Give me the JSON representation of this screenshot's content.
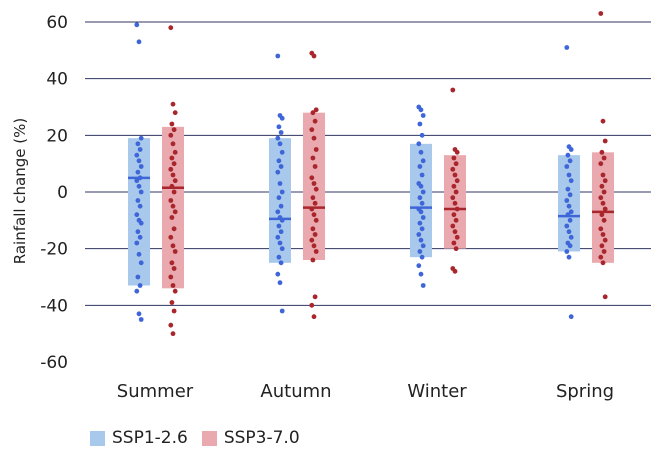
{
  "chart_data": {
    "type": "range-dot",
    "ylabel": "Rainfall change (%)",
    "ylim": [
      -60,
      65
    ],
    "yticks": [
      60,
      40,
      20,
      0,
      -20,
      -40,
      -60
    ],
    "categories": [
      "Summer",
      "Autumn",
      "Winter",
      "Spring"
    ],
    "colors": {
      "ssp126_fill": "#a9c9ec",
      "ssp126_dot": "#3f66d8",
      "ssp370_fill": "#e9a9ae",
      "ssp370_dot": "#a8262c",
      "gridline": "#2f3560"
    },
    "series": [
      {
        "name": "SSP1-2.6",
        "ranges": [
          [
            -33,
            19
          ],
          [
            -25,
            19
          ],
          [
            -23,
            17
          ],
          [
            -21,
            13
          ]
        ],
        "medians": [
          5,
          -9.5,
          -5.5,
          -8.5
        ],
        "points": [
          [
            59,
            53,
            19,
            17,
            15,
            13,
            11,
            9,
            7,
            5,
            4,
            2,
            0,
            -3,
            -5,
            -8,
            -10,
            -11,
            -14,
            -16,
            -18,
            -22,
            -25,
            -30,
            -33,
            -35,
            -43,
            -45
          ],
          [
            48,
            27,
            26,
            23,
            21,
            19,
            17,
            14,
            11,
            9,
            7,
            3,
            0,
            -2,
            -5,
            -7,
            -9,
            -10,
            -12,
            -14,
            -16,
            -18,
            -20,
            -23,
            -25,
            -29,
            -32,
            -42
          ],
          [
            30,
            29,
            27,
            24,
            20,
            17,
            14,
            11,
            9,
            6,
            3,
            2,
            0,
            -2,
            -4,
            -6,
            -7,
            -9,
            -11,
            -13,
            -15,
            -17,
            -19,
            -21,
            -23,
            -26,
            -29,
            -33
          ],
          [
            51,
            16,
            15,
            13,
            11,
            9,
            6,
            4,
            1,
            -1,
            -3,
            -5,
            -7,
            -8,
            -10,
            -12,
            -14,
            -16,
            -18,
            -19,
            -21,
            -23,
            -44
          ]
        ]
      },
      {
        "name": "SSP3-7.0",
        "ranges": [
          [
            -34,
            23
          ],
          [
            -24,
            28
          ],
          [
            -20,
            13
          ],
          [
            -25,
            14
          ]
        ],
        "medians": [
          1.5,
          -5.5,
          -6,
          -7
        ],
        "points": [
          [
            58,
            31,
            28,
            24,
            22,
            20,
            17,
            14,
            12,
            10,
            8,
            6,
            4,
            2,
            0,
            -3,
            -5,
            -7,
            -9,
            -13,
            -16,
            -19,
            -21,
            -25,
            -27,
            -30,
            -33,
            -35,
            -39,
            -42,
            -47,
            -50
          ],
          [
            49,
            48,
            29,
            28,
            25,
            22,
            19,
            15,
            12,
            9,
            5,
            3,
            1,
            -2,
            -4,
            -6,
            -8,
            -10,
            -13,
            -15,
            -17,
            -19,
            -21,
            -24,
            -37,
            -40,
            -44
          ],
          [
            36,
            15,
            14,
            12,
            10,
            8,
            6,
            4,
            2,
            0,
            -2,
            -4,
            -6,
            -8,
            -10,
            -12,
            -14,
            -16,
            -18,
            -20,
            -27,
            -28
          ],
          [
            63,
            25,
            18,
            14,
            12,
            10,
            6,
            4,
            2,
            0,
            -2,
            -4,
            -6,
            -8,
            -10,
            -13,
            -15,
            -17,
            -19,
            -21,
            -23,
            -25,
            -37
          ]
        ]
      }
    ]
  }
}
